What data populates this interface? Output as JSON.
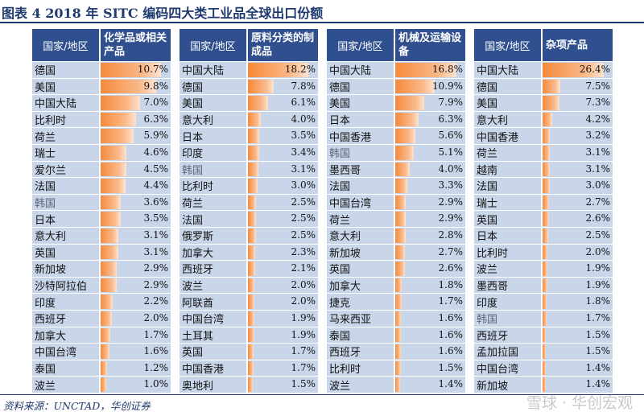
{
  "title": "图表 4   2018 年 SITC 编码四大类工业品全球出口份额",
  "source": "资料来源：UNCTAD，华创证券",
  "watermark": "雪球 · 华创宏观",
  "colors": {
    "header_bg": "#2f4f8f",
    "cell_bg": "#c9d6ea",
    "bar": "#f58a3c"
  },
  "chart_data": [
    {
      "type": "table",
      "region_header": "国家/地区",
      "category": "化学品或相关产品",
      "unit": "%",
      "xlim": [
        0,
        12
      ],
      "rows": [
        {
          "name": "德国",
          "value": 10.7,
          "label": "10.7%"
        },
        {
          "name": "美国",
          "value": 9.8,
          "label": "9.8%"
        },
        {
          "name": "中国大陆",
          "value": 7.0,
          "label": "7.0%"
        },
        {
          "name": "比利时",
          "value": 6.3,
          "label": "6.3%"
        },
        {
          "name": "荷兰",
          "value": 5.9,
          "label": "5.9%"
        },
        {
          "name": "瑞士",
          "value": 4.6,
          "label": "4.6%"
        },
        {
          "name": "爱尔兰",
          "value": 4.5,
          "label": "4.5%"
        },
        {
          "name": "法国",
          "value": 4.4,
          "label": "4.4%"
        },
        {
          "name": "韩国",
          "value": 3.6,
          "label": "3.6%"
        },
        {
          "name": "日本",
          "value": 3.5,
          "label": "3.5%"
        },
        {
          "name": "意大利",
          "value": 3.1,
          "label": "3.1%"
        },
        {
          "name": "英国",
          "value": 3.1,
          "label": "3.1%"
        },
        {
          "name": "新加坡",
          "value": 2.9,
          "label": "2.9%"
        },
        {
          "name": "沙特阿拉伯",
          "value": 2.9,
          "label": "2.9%"
        },
        {
          "name": "印度",
          "value": 2.2,
          "label": "2.2%"
        },
        {
          "name": "西班牙",
          "value": 2.0,
          "label": "2.0%"
        },
        {
          "name": "加拿大",
          "value": 1.7,
          "label": "1.7%"
        },
        {
          "name": "中国台湾",
          "value": 1.6,
          "label": "1.6%"
        },
        {
          "name": "泰国",
          "value": 1.2,
          "label": "1.2%"
        },
        {
          "name": "波兰",
          "value": 1.0,
          "label": "1.0%"
        }
      ]
    },
    {
      "type": "table",
      "region_header": "国家/地区",
      "category": "原料分类的制成品",
      "unit": "%",
      "xlim": [
        0,
        20.5
      ],
      "rows": [
        {
          "name": "中国大陆",
          "value": 18.2,
          "label": "18.2%"
        },
        {
          "name": "德国",
          "value": 7.8,
          "label": "7.8%"
        },
        {
          "name": "美国",
          "value": 6.1,
          "label": "6.1%"
        },
        {
          "name": "意大利",
          "value": 4.0,
          "label": "4.0%"
        },
        {
          "name": "日本",
          "value": 3.5,
          "label": "3.5%"
        },
        {
          "name": "印度",
          "value": 3.4,
          "label": "3.4%"
        },
        {
          "name": "韩国",
          "value": 3.1,
          "label": "3.1%"
        },
        {
          "name": "比利时",
          "value": 3.0,
          "label": "3.0%"
        },
        {
          "name": "荷兰",
          "value": 2.5,
          "label": "2.5%"
        },
        {
          "name": "法国",
          "value": 2.5,
          "label": "2.5%"
        },
        {
          "name": "俄罗斯",
          "value": 2.5,
          "label": "2.5%"
        },
        {
          "name": "加拿大",
          "value": 2.3,
          "label": "2.3%"
        },
        {
          "name": "西班牙",
          "value": 2.1,
          "label": "2.1%"
        },
        {
          "name": "波兰",
          "value": 2.0,
          "label": "2.0%"
        },
        {
          "name": "阿联酋",
          "value": 2.0,
          "label": "2.0%"
        },
        {
          "name": "中国台湾",
          "value": 1.9,
          "label": "1.9%"
        },
        {
          "name": "土耳其",
          "value": 1.9,
          "label": "1.9%"
        },
        {
          "name": "英国",
          "value": 1.7,
          "label": "1.7%"
        },
        {
          "name": "中国香港",
          "value": 1.7,
          "label": "1.7%"
        },
        {
          "name": "奥地利",
          "value": 1.5,
          "label": "1.5%"
        }
      ]
    },
    {
      "type": "table",
      "region_header": "国家/地区",
      "category": "机械及运输设备",
      "unit": "%",
      "xlim": [
        0,
        18.5
      ],
      "rows": [
        {
          "name": "中国大陆",
          "value": 16.8,
          "label": "16.8%"
        },
        {
          "name": "德国",
          "value": 10.9,
          "label": "10.9%"
        },
        {
          "name": "美国",
          "value": 7.9,
          "label": "7.9%"
        },
        {
          "name": "日本",
          "value": 6.3,
          "label": "6.3%"
        },
        {
          "name": "中国香港",
          "value": 5.6,
          "label": "5.6%"
        },
        {
          "name": "韩国",
          "value": 5.1,
          "label": "5.1%"
        },
        {
          "name": "墨西哥",
          "value": 4.0,
          "label": "4.0%"
        },
        {
          "name": "法国",
          "value": 3.3,
          "label": "3.3%"
        },
        {
          "name": "中国台湾",
          "value": 2.9,
          "label": "2.9%"
        },
        {
          "name": "荷兰",
          "value": 2.9,
          "label": "2.9%"
        },
        {
          "name": "意大利",
          "value": 2.8,
          "label": "2.8%"
        },
        {
          "name": "新加坡",
          "value": 2.7,
          "label": "2.7%"
        },
        {
          "name": "英国",
          "value": 2.6,
          "label": "2.6%"
        },
        {
          "name": "加拿大",
          "value": 1.8,
          "label": "1.8%"
        },
        {
          "name": "捷克",
          "value": 1.7,
          "label": "1.7%"
        },
        {
          "name": "马来西亚",
          "value": 1.6,
          "label": "1.6%"
        },
        {
          "name": "泰国",
          "value": 1.6,
          "label": "1.6%"
        },
        {
          "name": "西班牙",
          "value": 1.6,
          "label": "1.6%"
        },
        {
          "name": "比利时",
          "value": 1.5,
          "label": "1.5%"
        },
        {
          "name": "波兰",
          "value": 1.4,
          "label": "1.4%"
        }
      ]
    },
    {
      "type": "table",
      "region_header": "国家/地区",
      "category": "杂项产品",
      "unit": "%",
      "xlim": [
        0,
        29
      ],
      "rows": [
        {
          "name": "中国大陆",
          "value": 26.4,
          "label": "26.4%"
        },
        {
          "name": "德国",
          "value": 7.5,
          "label": "7.5%"
        },
        {
          "name": "美国",
          "value": 7.3,
          "label": "7.3%"
        },
        {
          "name": "意大利",
          "value": 4.2,
          "label": "4.2%"
        },
        {
          "name": "中国香港",
          "value": 3.2,
          "label": "3.2%"
        },
        {
          "name": "荷兰",
          "value": 3.1,
          "label": "3.1%"
        },
        {
          "name": "越南",
          "value": 3.1,
          "label": "3.1%"
        },
        {
          "name": "法国",
          "value": 3.0,
          "label": "3.0%"
        },
        {
          "name": "瑞士",
          "value": 2.7,
          "label": "2.7%"
        },
        {
          "name": "英国",
          "value": 2.6,
          "label": "2.6%"
        },
        {
          "name": "日本",
          "value": 2.5,
          "label": "2.5%"
        },
        {
          "name": "比利时",
          "value": 2.0,
          "label": "2.0%"
        },
        {
          "name": "波兰",
          "value": 1.9,
          "label": "1.9%"
        },
        {
          "name": "墨西哥",
          "value": 1.9,
          "label": "1.9%"
        },
        {
          "name": "印度",
          "value": 1.8,
          "label": "1.8%"
        },
        {
          "name": "韩国",
          "value": 1.7,
          "label": "1.7%"
        },
        {
          "name": "西班牙",
          "value": 1.5,
          "label": "1.5%"
        },
        {
          "name": "孟加拉国",
          "value": 1.5,
          "label": "1.5%"
        },
        {
          "name": "中国台湾",
          "value": 1.4,
          "label": "1.4%"
        },
        {
          "name": "新加坡",
          "value": 1.4,
          "label": "1.4%"
        }
      ]
    }
  ]
}
